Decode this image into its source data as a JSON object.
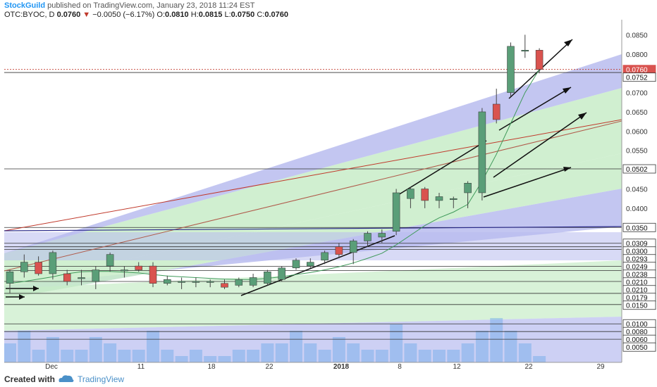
{
  "header": {
    "author": "StockGuild",
    "published": "published on TradingView.com, January 23, 2018 11:24 EST",
    "symbol": "OTC:BYOC, D",
    "last": "0.0760",
    "arrow": "▼",
    "change": "−0.0050 (−6.17%)",
    "o_label": "O:",
    "o": "0.0810",
    "h_label": "H:",
    "h": "0.0815",
    "l_label": "L:",
    "l": "0.0750",
    "c_label": "C:",
    "c": "0.0760"
  },
  "footer": {
    "created": "Created with",
    "brand": "TradingView"
  },
  "colors": {
    "up": "#5a9e78",
    "down": "#d9534f",
    "green_fill": "#c8ecc8",
    "blue_fill": "#b8bcef",
    "volume": "#6aa8e8"
  },
  "chart_data": {
    "type": "candlestick",
    "symbol": "OTC:BYOC",
    "interval": "D",
    "ylim": [
      0.0,
      0.09
    ],
    "x_ticks": [
      "Dec",
      "11",
      "18",
      "22",
      "2018",
      "8",
      "12",
      "22",
      "29"
    ],
    "price_axis_labels": [
      "0.0850",
      "0.0800",
      "0.0700",
      "0.0650",
      "0.0600",
      "0.0550",
      "0.0450",
      "0.0400"
    ],
    "level_labels": [
      "0.0760",
      "0.0752",
      "0.0502",
      "0.0350",
      "0.0309",
      "0.0300",
      "0.0293",
      "0.0249",
      "0.0238",
      "0.0210",
      "0.0210",
      "0.0179",
      "0.0150",
      "0.0100",
      "0.0080",
      "0.0060",
      "0.0050"
    ],
    "horizontal_levels": [
      0.0752,
      0.0502,
      0.035,
      0.0309,
      0.03,
      0.0293,
      0.0249,
      0.0238,
      0.021,
      0.0179,
      0.015,
      0.01,
      0.008,
      0.006
    ],
    "candles": [
      {
        "o": 0.0205,
        "h": 0.024,
        "l": 0.018,
        "c": 0.0235
      },
      {
        "o": 0.0235,
        "h": 0.028,
        "l": 0.022,
        "c": 0.026
      },
      {
        "o": 0.026,
        "h": 0.0275,
        "l": 0.0225,
        "c": 0.023
      },
      {
        "o": 0.023,
        "h": 0.029,
        "l": 0.0215,
        "c": 0.0285
      },
      {
        "o": 0.023,
        "h": 0.024,
        "l": 0.02,
        "c": 0.021
      },
      {
        "o": 0.022,
        "h": 0.024,
        "l": 0.02,
        "c": 0.022
      },
      {
        "o": 0.021,
        "h": 0.025,
        "l": 0.019,
        "c": 0.024
      },
      {
        "o": 0.025,
        "h": 0.0285,
        "l": 0.0235,
        "c": 0.028
      },
      {
        "o": 0.024,
        "h": 0.025,
        "l": 0.022,
        "c": 0.024
      },
      {
        "o": 0.025,
        "h": 0.026,
        "l": 0.0235,
        "c": 0.024
      },
      {
        "o": 0.025,
        "h": 0.026,
        "l": 0.0195,
        "c": 0.0205
      },
      {
        "o": 0.0205,
        "h": 0.0225,
        "l": 0.02,
        "c": 0.0215
      },
      {
        "o": 0.021,
        "h": 0.022,
        "l": 0.019,
        "c": 0.021
      },
      {
        "o": 0.021,
        "h": 0.022,
        "l": 0.0195,
        "c": 0.021
      },
      {
        "o": 0.021,
        "h": 0.0215,
        "l": 0.0195,
        "c": 0.021
      },
      {
        "o": 0.0205,
        "h": 0.0215,
        "l": 0.019,
        "c": 0.0195
      },
      {
        "o": 0.02,
        "h": 0.022,
        "l": 0.0195,
        "c": 0.0215
      },
      {
        "o": 0.02,
        "h": 0.023,
        "l": 0.0195,
        "c": 0.022
      },
      {
        "o": 0.0205,
        "h": 0.024,
        "l": 0.02,
        "c": 0.0235
      },
      {
        "o": 0.0215,
        "h": 0.025,
        "l": 0.021,
        "c": 0.0245
      },
      {
        "o": 0.0245,
        "h": 0.027,
        "l": 0.024,
        "c": 0.0265
      },
      {
        "o": 0.025,
        "h": 0.027,
        "l": 0.0245,
        "c": 0.026
      },
      {
        "o": 0.0265,
        "h": 0.029,
        "l": 0.0255,
        "c": 0.0285
      },
      {
        "o": 0.03,
        "h": 0.031,
        "l": 0.027,
        "c": 0.028
      },
      {
        "o": 0.0285,
        "h": 0.032,
        "l": 0.0255,
        "c": 0.0315
      },
      {
        "o": 0.0315,
        "h": 0.034,
        "l": 0.03,
        "c": 0.0335
      },
      {
        "o": 0.0325,
        "h": 0.0345,
        "l": 0.031,
        "c": 0.0335
      },
      {
        "o": 0.034,
        "h": 0.045,
        "l": 0.033,
        "c": 0.044
      },
      {
        "o": 0.0425,
        "h": 0.0455,
        "l": 0.04,
        "c": 0.045
      },
      {
        "o": 0.045,
        "h": 0.0455,
        "l": 0.04,
        "c": 0.042
      },
      {
        "o": 0.042,
        "h": 0.044,
        "l": 0.04,
        "c": 0.043
      },
      {
        "o": 0.0425,
        "h": 0.043,
        "l": 0.04,
        "c": 0.0425
      },
      {
        "o": 0.044,
        "h": 0.047,
        "l": 0.04,
        "c": 0.0465
      },
      {
        "o": 0.044,
        "h": 0.066,
        "l": 0.042,
        "c": 0.065
      },
      {
        "o": 0.067,
        "h": 0.071,
        "l": 0.062,
        "c": 0.063
      },
      {
        "o": 0.07,
        "h": 0.083,
        "l": 0.069,
        "c": 0.082
      },
      {
        "o": 0.081,
        "h": 0.085,
        "l": 0.079,
        "c": 0.081
      },
      {
        "o": 0.081,
        "h": 0.0815,
        "l": 0.075,
        "c": 0.076
      }
    ],
    "moving_average": [
      0.0205,
      0.021,
      0.0216,
      0.0222,
      0.023,
      0.0235,
      0.0236,
      0.0236,
      0.0234,
      0.0232,
      0.0228,
      0.0224,
      0.0222,
      0.022,
      0.0218,
      0.0216,
      0.0215,
      0.0215,
      0.0218,
      0.0222,
      0.0228,
      0.0233,
      0.024,
      0.0248,
      0.0258,
      0.027,
      0.0283,
      0.0305,
      0.033,
      0.0355,
      0.0375,
      0.039,
      0.041,
      0.047,
      0.054,
      0.062,
      0.07,
      0.076
    ],
    "volume": [
      3,
      5,
      2,
      4,
      2,
      2,
      4,
      3,
      2,
      2,
      5,
      2,
      1,
      2,
      1,
      1,
      2,
      2,
      3,
      3,
      5,
      3,
      2,
      4,
      3,
      2,
      2,
      6,
      3,
      2,
      2,
      2,
      3,
      5,
      7,
      5,
      3,
      1
    ]
  }
}
